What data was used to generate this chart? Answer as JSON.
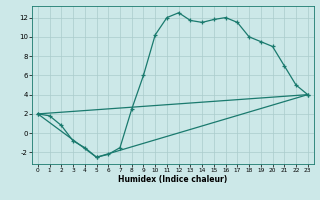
{
  "xlabel": "Humidex (Indice chaleur)",
  "background_color": "#cce8e8",
  "grid_color": "#aacccc",
  "line_color": "#1a7a6e",
  "xlim": [
    -0.5,
    23.5
  ],
  "ylim": [
    -3.2,
    13.2
  ],
  "xticks": [
    0,
    1,
    2,
    3,
    4,
    5,
    6,
    7,
    8,
    9,
    10,
    11,
    12,
    13,
    14,
    15,
    16,
    17,
    18,
    19,
    20,
    21,
    22,
    23
  ],
  "yticks": [
    -2,
    0,
    2,
    4,
    6,
    8,
    10,
    12
  ],
  "line1_x": [
    0,
    1,
    2,
    3,
    4,
    5,
    6,
    7,
    8,
    9,
    10,
    11,
    12,
    13,
    14,
    15,
    16,
    17,
    18,
    19,
    20,
    21,
    22,
    23
  ],
  "line1_y": [
    2.0,
    1.8,
    0.8,
    -0.8,
    -1.5,
    -2.5,
    -2.2,
    -1.5,
    2.5,
    6.0,
    10.2,
    12.0,
    12.5,
    11.7,
    11.5,
    11.8,
    12.0,
    11.5,
    10.0,
    9.5,
    9.0,
    7.0,
    5.0,
    4.0
  ],
  "line2_x": [
    0,
    5,
    23
  ],
  "line2_y": [
    2.0,
    -2.5,
    4.0
  ],
  "line3_x": [
    0,
    23
  ],
  "line3_y": [
    2.0,
    4.0
  ]
}
